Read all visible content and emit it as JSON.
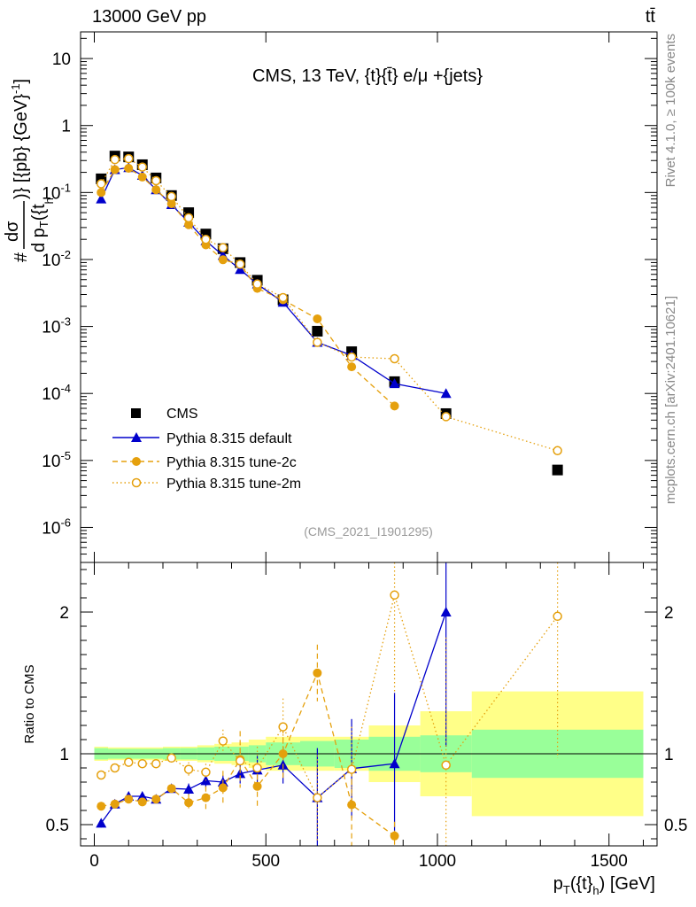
{
  "header": {
    "left": "13000 GeV pp",
    "right": "tt̄"
  },
  "side_labels": {
    "rivet": "Rivet 4.1.0, ≥ 100k events",
    "mcplots": "mcplots.cern.ch [arXiv:2401.10621]"
  },
  "chart_data": [
    {
      "type": "scatter",
      "title": "CMS, 13 TeV, {t}{t̄} e/μ +{jets}",
      "watermark": "(CMS_2021_I1901295)",
      "yscale": "log",
      "ylim": [
        3e-07,
        25
      ],
      "xlim": [
        -40,
        1640
      ],
      "ytick_labels": [
        "10",
        "1",
        "10^-1",
        "10^-2",
        "10^-3",
        "10^-4",
        "10^-5",
        "10^-6"
      ],
      "ylabel": {
        "prefix": "#",
        "num": "dσ",
        "den": "d p",
        "den_sub": "T",
        "den_mid": "({t",
        "den_sub2": "h",
        "suffix": ")} [{pb} {GeV}",
        "sup": "-1",
        "end": "]"
      },
      "legend": {
        "position": "lower-left",
        "entries": [
          "CMS",
          "Pythia 8.315 default",
          "Pythia 8.315 tune-2c",
          "Pythia 8.315 tune-2m"
        ]
      },
      "series": [
        {
          "name": "CMS",
          "color": "#000000",
          "marker": "square",
          "x": [
            20,
            60,
            100,
            140,
            180,
            225,
            275,
            325,
            375,
            425,
            475,
            550,
            650,
            750,
            875,
            1025,
            1350
          ],
          "y": [
            0.16,
            0.35,
            0.34,
            0.26,
            0.165,
            0.09,
            0.05,
            0.024,
            0.0145,
            0.009,
            0.0049,
            0.0025,
            0.00085,
            0.00042,
            0.00015,
            5e-05,
            7.2e-06
          ]
        },
        {
          "name": "Pythia 8.315 default",
          "color": "#0000cc",
          "marker": "triangle",
          "line": "solid",
          "x": [
            20,
            60,
            100,
            140,
            180,
            225,
            275,
            325,
            375,
            425,
            475,
            550,
            650,
            750,
            875,
            1025
          ],
          "y": [
            0.08,
            0.22,
            0.235,
            0.18,
            0.11,
            0.066,
            0.036,
            0.019,
            0.0115,
            0.0071,
            0.0043,
            0.0023,
            0.00058,
            0.00037,
            0.00014,
            0.0001
          ]
        },
        {
          "name": "Pythia 8.315 tune-2c",
          "color": "#e5a00d",
          "marker": "circle",
          "line": "dashed",
          "x": [
            20,
            60,
            100,
            140,
            180,
            225,
            275,
            325,
            375,
            425,
            475,
            550,
            650,
            750,
            875
          ],
          "y": [
            0.1,
            0.22,
            0.23,
            0.17,
            0.11,
            0.068,
            0.033,
            0.0165,
            0.0099,
            0.0085,
            0.0037,
            0.0025,
            0.0013,
            0.00025,
            6.5e-05
          ]
        },
        {
          "name": "Pythia 8.315 tune-2m",
          "color": "#e5a00d",
          "marker": "open-circle",
          "line": "dotted",
          "x": [
            20,
            60,
            100,
            140,
            180,
            225,
            275,
            325,
            375,
            425,
            475,
            550,
            650,
            750,
            875,
            1025,
            1350
          ],
          "y": [
            0.135,
            0.31,
            0.32,
            0.24,
            0.15,
            0.087,
            0.042,
            0.02,
            0.015,
            0.0085,
            0.0043,
            0.0027,
            0.00058,
            0.00035,
            0.00033,
            4.5e-05,
            1.4e-05
          ]
        }
      ]
    },
    {
      "type": "scatter",
      "ylabel": "Ratio to CMS",
      "xlabel": "p_T({t}_h) [GeV]",
      "ylim": [
        0.35,
        2.35
      ],
      "xlim": [
        -40,
        1640
      ],
      "yticks": [
        0.5,
        1,
        2
      ],
      "ytick_labels": [
        "0.5",
        "1",
        "2"
      ],
      "xticks": [
        0,
        500,
        1000,
        1500
      ],
      "xtick_labels": [
        "0",
        "500",
        "1000",
        "1500"
      ],
      "uncertainty_bands": {
        "bin_edges": [
          0,
          40,
          80,
          120,
          160,
          200,
          250,
          300,
          350,
          400,
          450,
          500,
          600,
          700,
          800,
          950,
          1100,
          1600
        ],
        "inner": [
          0.04,
          0.035,
          0.035,
          0.035,
          0.035,
          0.04,
          0.04,
          0.045,
          0.05,
          0.05,
          0.06,
          0.08,
          0.09,
          0.1,
          0.12,
          0.13,
          0.17
        ],
        "outer": [
          0.05,
          0.045,
          0.045,
          0.045,
          0.045,
          0.05,
          0.05,
          0.06,
          0.07,
          0.08,
          0.1,
          0.12,
          0.12,
          0.12,
          0.2,
          0.3,
          0.44
        ],
        "inner_color": "#99ff99",
        "outer_color": "#ffff88"
      },
      "series": [
        {
          "name": "Pythia 8.315 default",
          "color": "#0000cc",
          "marker": "triangle",
          "line": "solid",
          "x": [
            20,
            60,
            100,
            140,
            180,
            225,
            275,
            325,
            375,
            425,
            475,
            550,
            650,
            750,
            875,
            1025
          ],
          "y": [
            0.51,
            0.645,
            0.7,
            0.7,
            0.68,
            0.755,
            0.75,
            0.81,
            0.8,
            0.86,
            0.885,
            0.92,
            0.69,
            0.895,
            0.93,
            2.0
          ],
          "err": [
            0.03,
            0.02,
            0.02,
            0.02,
            0.02,
            0.03,
            0.04,
            0.05,
            0.05,
            0.07,
            0.1,
            0.13,
            0.35,
            0.35,
            0.5,
            0.95
          ]
        },
        {
          "name": "Pythia 8.315 tune-2c",
          "color": "#e5a00d",
          "marker": "circle",
          "line": "dashed",
          "x": [
            20,
            60,
            100,
            140,
            180,
            225,
            275,
            325,
            375,
            425,
            475,
            550,
            650,
            750,
            875
          ],
          "y": [
            0.63,
            0.645,
            0.68,
            0.66,
            0.68,
            0.755,
            0.655,
            0.69,
            0.76,
            0.96,
            0.77,
            1.0,
            1.57,
            0.64,
            0.42
          ],
          "err": [
            0.03,
            0.02,
            0.02,
            0.02,
            0.03,
            0.03,
            0.06,
            0.08,
            0.12,
            0.2,
            0.15,
            0.18,
            0.2,
            0.3,
            0.1
          ]
        },
        {
          "name": "Pythia 8.315 tune-2m",
          "color": "#e5a00d",
          "marker": "open-circle",
          "line": "dotted",
          "x": [
            20,
            60,
            100,
            140,
            180,
            225,
            275,
            325,
            375,
            425,
            475,
            550,
            650,
            750,
            875,
            1025,
            1350
          ],
          "y": [
            0.85,
            0.9,
            0.94,
            0.93,
            0.93,
            0.97,
            0.89,
            0.87,
            1.09,
            0.95,
            0.9,
            1.19,
            0.69,
            0.89,
            2.12,
            0.92,
            1.97
          ],
          "err": [
            0.02,
            0.02,
            0.02,
            0.02,
            0.02,
            0.03,
            0.05,
            0.06,
            0.08,
            0.12,
            0.15,
            0.2,
            0.3,
            0.3,
            0.7,
            0.9,
            1.0
          ]
        }
      ]
    }
  ]
}
